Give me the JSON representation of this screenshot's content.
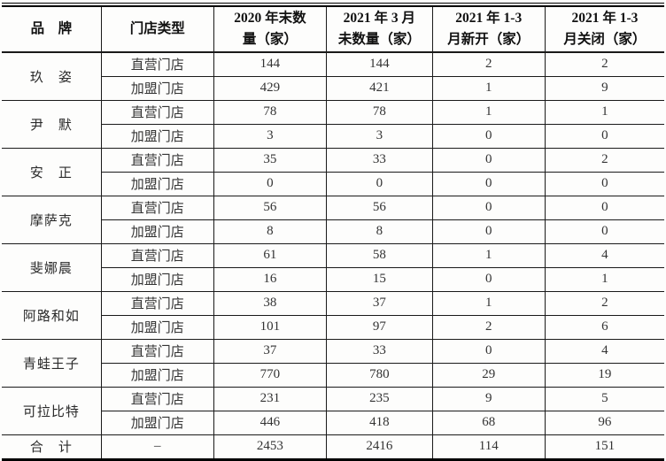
{
  "page": {
    "background": "#fdfdfc",
    "border_color": "#000000",
    "header_text_color": "#111111",
    "body_text_color": "#333333"
  },
  "table": {
    "columns": [
      "品　牌",
      "门店类型",
      "2020 年末数\n量（家）",
      "2021 年 3 月\n未数量（家）",
      "2021 年 1-3\n月新开（家）",
      "2021 年 1-3\n月关闭（家）"
    ],
    "groups": [
      {
        "brand": "玖　姿",
        "rows": [
          {
            "type": "直营门店",
            "values": [
              "144",
              "144",
              "2",
              "2"
            ]
          },
          {
            "type": "加盟门店",
            "values": [
              "429",
              "421",
              "1",
              "9"
            ]
          }
        ]
      },
      {
        "brand": "尹　默",
        "rows": [
          {
            "type": "直营门店",
            "values": [
              "78",
              "78",
              "1",
              "1"
            ]
          },
          {
            "type": "加盟门店",
            "values": [
              "3",
              "3",
              "0",
              "0"
            ]
          }
        ]
      },
      {
        "brand": "安　正",
        "rows": [
          {
            "type": "直营门店",
            "values": [
              "35",
              "33",
              "0",
              "2"
            ]
          },
          {
            "type": "加盟门店",
            "values": [
              "0",
              "0",
              "0",
              "0"
            ]
          }
        ]
      },
      {
        "brand": "摩萨克",
        "rows": [
          {
            "type": "直营门店",
            "values": [
              "56",
              "56",
              "0",
              "0"
            ]
          },
          {
            "type": "加盟门店",
            "values": [
              "8",
              "8",
              "0",
              "0"
            ]
          }
        ]
      },
      {
        "brand": "斐娜晨",
        "rows": [
          {
            "type": "直营门店",
            "values": [
              "61",
              "58",
              "1",
              "4"
            ]
          },
          {
            "type": "加盟门店",
            "values": [
              "16",
              "15",
              "0",
              "1"
            ]
          }
        ]
      },
      {
        "brand": "阿路和如",
        "rows": [
          {
            "type": "直营门店",
            "values": [
              "38",
              "37",
              "1",
              "2"
            ]
          },
          {
            "type": "加盟门店",
            "values": [
              "101",
              "97",
              "2",
              "6"
            ]
          }
        ]
      },
      {
        "brand": "青蛙王子",
        "rows": [
          {
            "type": "直营门店",
            "values": [
              "37",
              "33",
              "0",
              "4"
            ]
          },
          {
            "type": "加盟门店",
            "values": [
              "770",
              "780",
              "29",
              "19"
            ]
          }
        ]
      },
      {
        "brand": "可拉比特",
        "rows": [
          {
            "type": "直营门店",
            "values": [
              "231",
              "235",
              "9",
              "5"
            ]
          },
          {
            "type": "加盟门店",
            "values": [
              "446",
              "418",
              "68",
              "96"
            ]
          }
        ]
      }
    ],
    "total": {
      "label": "合　计",
      "type": "–",
      "values": [
        "2453",
        "2416",
        "114",
        "151"
      ]
    }
  }
}
